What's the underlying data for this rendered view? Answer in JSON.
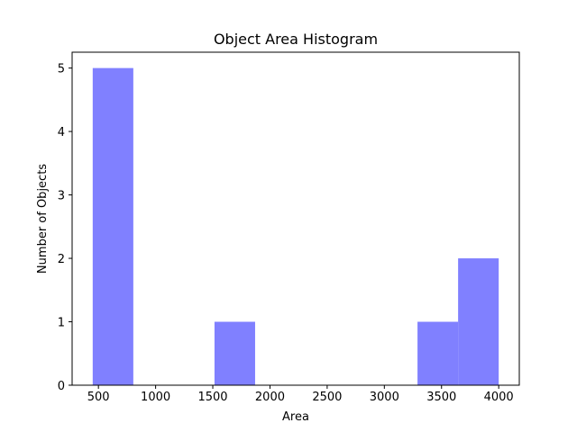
{
  "chart_data": {
    "type": "bar",
    "title": "Object Area Histogram",
    "xlabel": "Area",
    "ylabel": "Number of Objects",
    "xlim": [
      270,
      4180
    ],
    "ylim": [
      0,
      5.25
    ],
    "x_ticks": [
      500,
      1000,
      1500,
      2000,
      2500,
      3000,
      3500,
      4000
    ],
    "y_ticks": [
      0,
      1,
      2,
      3,
      4,
      5
    ],
    "bins": [
      {
        "start": 450,
        "end": 805,
        "count": 5
      },
      {
        "start": 805,
        "end": 1160,
        "count": 0
      },
      {
        "start": 1160,
        "end": 1515,
        "count": 0
      },
      {
        "start": 1515,
        "end": 1870,
        "count": 1
      },
      {
        "start": 1870,
        "end": 2225,
        "count": 0
      },
      {
        "start": 2225,
        "end": 2580,
        "count": 0
      },
      {
        "start": 2580,
        "end": 2935,
        "count": 0
      },
      {
        "start": 2935,
        "end": 3290,
        "count": 0
      },
      {
        "start": 3290,
        "end": 3645,
        "count": 1
      },
      {
        "start": 3645,
        "end": 4000,
        "count": 2
      }
    ],
    "bar_color": "#8080ff",
    "grid": false,
    "legend": "none"
  }
}
